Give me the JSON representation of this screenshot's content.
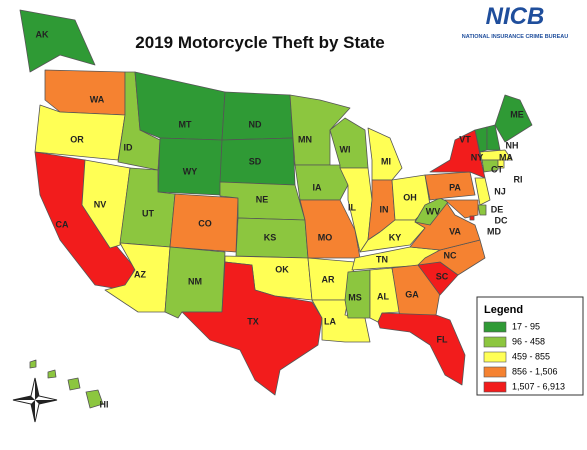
{
  "title": "2019 Motorcycle Theft by State",
  "logo": {
    "name": "NICB",
    "tagline": "NATIONAL INSURANCE CRIME BUREAU"
  },
  "legend": {
    "title": "Legend",
    "classes": [
      {
        "label": "17 - 95",
        "color": "#2f9a35"
      },
      {
        "label": "96 - 458",
        "color": "#8cc63f"
      },
      {
        "label": "459 - 855",
        "color": "#ffff55"
      },
      {
        "label": "856 - 1,506",
        "color": "#f58231"
      },
      {
        "label": "1,507 - 6,913",
        "color": "#f21c1c"
      }
    ]
  },
  "states": [
    {
      "label": "WA",
      "color": "#f58231"
    },
    {
      "label": "OR",
      "color": "#ffff55"
    },
    {
      "label": "CA",
      "color": "#f21c1c"
    },
    {
      "label": "NV",
      "color": "#ffff55"
    },
    {
      "label": "ID",
      "color": "#8cc63f"
    },
    {
      "label": "MT",
      "color": "#2f9a35"
    },
    {
      "label": "WY",
      "color": "#2f9a35"
    },
    {
      "label": "UT",
      "color": "#8cc63f"
    },
    {
      "label": "CO",
      "color": "#f58231"
    },
    {
      "label": "AZ",
      "color": "#ffff55"
    },
    {
      "label": "NM",
      "color": "#8cc63f"
    },
    {
      "label": "ND",
      "color": "#2f9a35"
    },
    {
      "label": "SD",
      "color": "#2f9a35"
    },
    {
      "label": "NE",
      "color": "#8cc63f"
    },
    {
      "label": "KS",
      "color": "#8cc63f"
    },
    {
      "label": "OK",
      "color": "#ffff55"
    },
    {
      "label": "TX",
      "color": "#f21c1c"
    },
    {
      "label": "MN",
      "color": "#8cc63f"
    },
    {
      "label": "IA",
      "color": "#8cc63f"
    },
    {
      "label": "MO",
      "color": "#f58231"
    },
    {
      "label": "AR",
      "color": "#ffff55"
    },
    {
      "label": "LA",
      "color": "#ffff55"
    },
    {
      "label": "WI",
      "color": "#8cc63f"
    },
    {
      "label": "IL",
      "color": "#ffff55"
    },
    {
      "label": "MI",
      "color": "#ffff55"
    },
    {
      "label": "IN",
      "color": "#f58231"
    },
    {
      "label": "OH",
      "color": "#ffff55"
    },
    {
      "label": "KY",
      "color": "#ffff55"
    },
    {
      "label": "TN",
      "color": "#ffff55"
    },
    {
      "label": "MS",
      "color": "#8cc63f"
    },
    {
      "label": "AL",
      "color": "#ffff55"
    },
    {
      "label": "GA",
      "color": "#f58231"
    },
    {
      "label": "FL",
      "color": "#f21c1c"
    },
    {
      "label": "SC",
      "color": "#f21c1c"
    },
    {
      "label": "NC",
      "color": "#f58231"
    },
    {
      "label": "VA",
      "color": "#f58231"
    },
    {
      "label": "WV",
      "color": "#8cc63f"
    },
    {
      "label": "PA",
      "color": "#f58231"
    },
    {
      "label": "NY",
      "color": "#f21c1c"
    },
    {
      "label": "VT",
      "color": "#2f9a35"
    },
    {
      "label": "NH",
      "color": "#2f9a35"
    },
    {
      "label": "ME",
      "color": "#2f9a35"
    },
    {
      "label": "MA",
      "color": "#ffff55"
    },
    {
      "label": "CT",
      "color": "#8cc63f"
    },
    {
      "label": "RI",
      "color": "#ffff55"
    },
    {
      "label": "NJ",
      "color": "#ffff55"
    },
    {
      "label": "DE",
      "color": "#8cc63f"
    },
    {
      "label": "MD",
      "color": "#f58231"
    },
    {
      "label": "DC",
      "color": "#f21c1c"
    },
    {
      "label": "AK",
      "color": "#2f9a35"
    },
    {
      "label": "HI",
      "color": "#8cc63f"
    }
  ]
}
